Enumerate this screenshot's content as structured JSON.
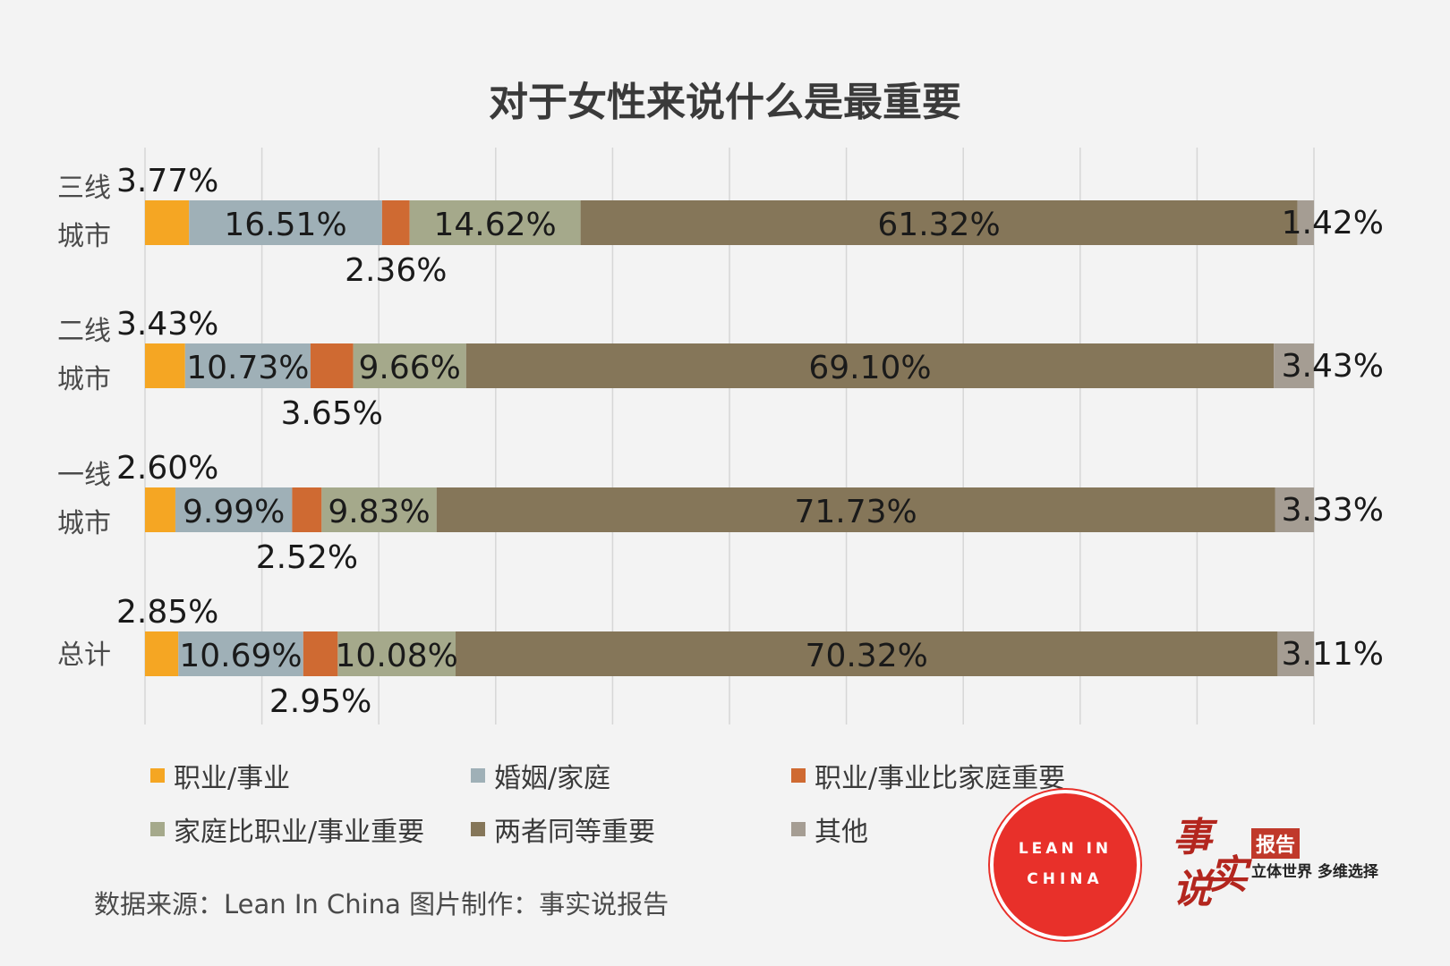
{
  "chart_data": {
    "type": "bar",
    "orientation": "horizontal",
    "stacked": true,
    "title": "对于女性来说什么是最重要",
    "categories": [
      "三线\n城市",
      "二线\n城市",
      "一线\n城市",
      "总计"
    ],
    "series": [
      {
        "name": "职业/事业",
        "color": "#f5a623",
        "values": [
          3.77,
          3.43,
          2.6,
          2.85
        ],
        "labels": [
          "3.77%",
          "3.43%",
          "2.60%",
          "2.85%"
        ]
      },
      {
        "name": "婚姻/家庭",
        "color": "#9fb0b7",
        "values": [
          16.51,
          10.73,
          9.99,
          10.69
        ],
        "labels": [
          "16.51%",
          "10.73%",
          "9.99%",
          "10.69%"
        ]
      },
      {
        "name": "职业/事业比家庭重要",
        "color": "#cf6a32",
        "values": [
          2.36,
          3.65,
          2.52,
          2.95
        ],
        "labels": [
          "2.36%",
          "3.65%",
          "2.52%",
          "2.95%"
        ]
      },
      {
        "name": "家庭比职业/事业重要",
        "color": "#a5a98b",
        "values": [
          14.62,
          9.66,
          9.83,
          10.08
        ],
        "labels": [
          "14.62%",
          "9.66%",
          "9.83%",
          "10.08%"
        ]
      },
      {
        "name": "两者同等重要",
        "color": "#857659",
        "values": [
          61.32,
          69.1,
          71.73,
          70.32
        ],
        "labels": [
          "61.32%",
          "69.10%",
          "71.73%",
          "70.32%"
        ]
      },
      {
        "name": "其他",
        "color": "#a59d93",
        "values": [
          1.42,
          3.43,
          3.33,
          3.11
        ],
        "labels": [
          "1.42%",
          "3.43%",
          "3.33%",
          "3.11%"
        ]
      }
    ],
    "xlim": [
      0,
      100
    ],
    "grid": true,
    "legend": "bottom"
  },
  "footer": {
    "source": "数据来源：Lean In China  图片制作：事实说报告"
  },
  "logos": {
    "lean_in_line1": "LEAN IN",
    "lean_in_line2": "CHINA",
    "brand_char1": "事",
    "brand_char2": "实",
    "brand_char3": "说",
    "brand_badge": "报告",
    "brand_slogan": "立体世界 多维选择"
  }
}
